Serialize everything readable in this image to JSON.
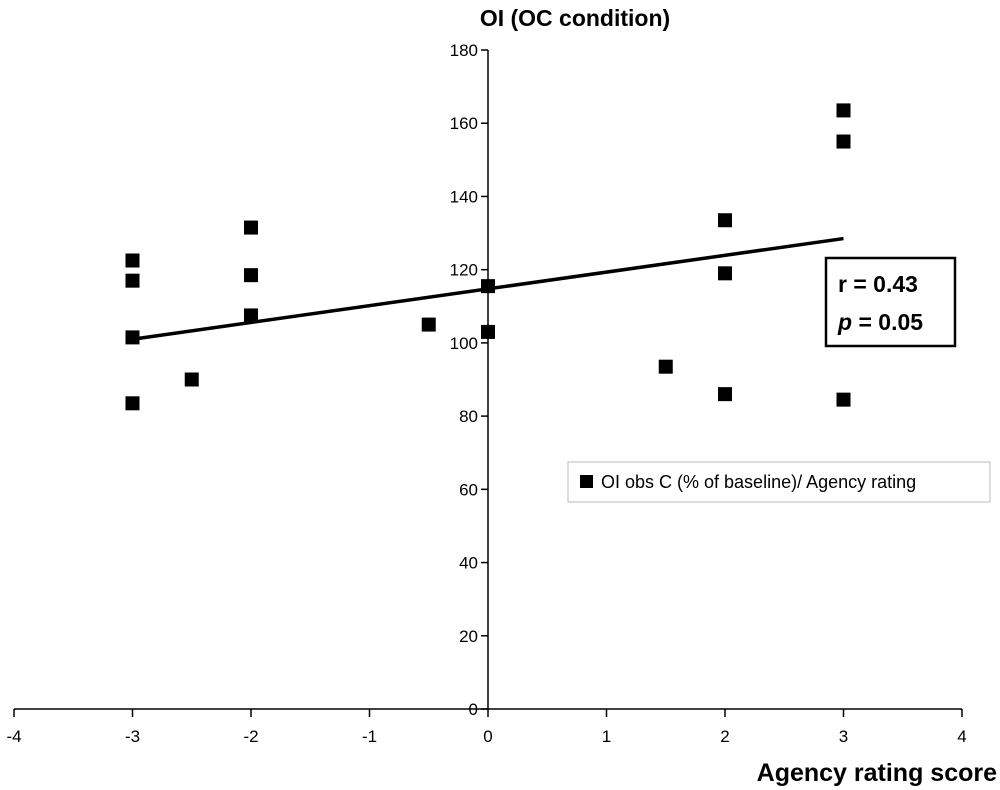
{
  "chart_data": {
    "type": "scatter",
    "title": "OI (OC condition)",
    "xlabel": "Agency rating score",
    "ylabel": "",
    "xlim": [
      -4,
      4
    ],
    "ylim": [
      0,
      180
    ],
    "x_ticks": [
      -4,
      -3,
      -2,
      -1,
      0,
      1,
      2,
      3,
      4
    ],
    "y_ticks": [
      0,
      20,
      40,
      60,
      80,
      100,
      120,
      140,
      160,
      180
    ],
    "grid": false,
    "legend_position": "right",
    "series": [
      {
        "name": "OI obs C (% of baseline)/ Agency rating",
        "marker": "square",
        "color": "#000000",
        "points": [
          [
            -3,
            122.5
          ],
          [
            -3,
            117
          ],
          [
            -3,
            101.5
          ],
          [
            -3,
            83.5
          ],
          [
            -2.5,
            90
          ],
          [
            -2,
            131.5
          ],
          [
            -2,
            118.5
          ],
          [
            -2,
            107.5
          ],
          [
            -0.5,
            105
          ],
          [
            0,
            115.5
          ],
          [
            0,
            103
          ],
          [
            1.5,
            93.5
          ],
          [
            2,
            133.5
          ],
          [
            2,
            119
          ],
          [
            2,
            86
          ],
          [
            3,
            163.5
          ],
          [
            3,
            155
          ],
          [
            3,
            84.5
          ]
        ]
      }
    ],
    "trendline": {
      "x_start": -3,
      "y_start": 101,
      "x_end": 3,
      "y_end": 128.5
    },
    "annotation": {
      "r_text": "r = 0.43",
      "p_symbol": "p",
      "p_value_text": " = 0.05"
    }
  }
}
